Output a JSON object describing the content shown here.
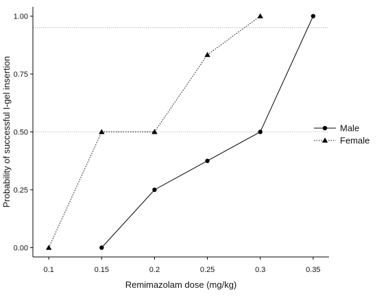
{
  "chart_data": {
    "type": "line",
    "title": "",
    "xlabel": "Remimazolam dose (mg/kg)",
    "ylabel": "Probability of successful I-gel insertion",
    "xlim": [
      0.085,
      0.365
    ],
    "ylim": [
      -0.04,
      1.04
    ],
    "x_ticks": [
      0.1,
      0.15,
      0.2,
      0.25,
      0.3,
      0.35
    ],
    "x_tick_labels": [
      "0.1",
      "0.15",
      "0.2",
      "0.25",
      "0.3",
      "0.35"
    ],
    "y_ticks": [
      0.0,
      0.25,
      0.5,
      0.75,
      1.0
    ],
    "y_tick_labels": [
      "0.00",
      "0.25",
      "0.50",
      "0.75",
      "1.00"
    ],
    "reference_lines": [
      0.5,
      0.95
    ],
    "grid": false,
    "legend_position": "right",
    "series": [
      {
        "name": "Male",
        "marker": "circle",
        "line_style": "solid",
        "color": "#000000",
        "x": [
          0.15,
          0.2,
          0.25,
          0.3,
          0.35
        ],
        "y": [
          0.0,
          0.25,
          0.375,
          0.5,
          1.0
        ]
      },
      {
        "name": "Female",
        "marker": "triangle",
        "line_style": "dotted",
        "color": "#000000",
        "x": [
          0.1,
          0.15,
          0.2,
          0.25,
          0.3
        ],
        "y": [
          0.0,
          0.5,
          0.5,
          0.833,
          1.0
        ]
      }
    ]
  }
}
